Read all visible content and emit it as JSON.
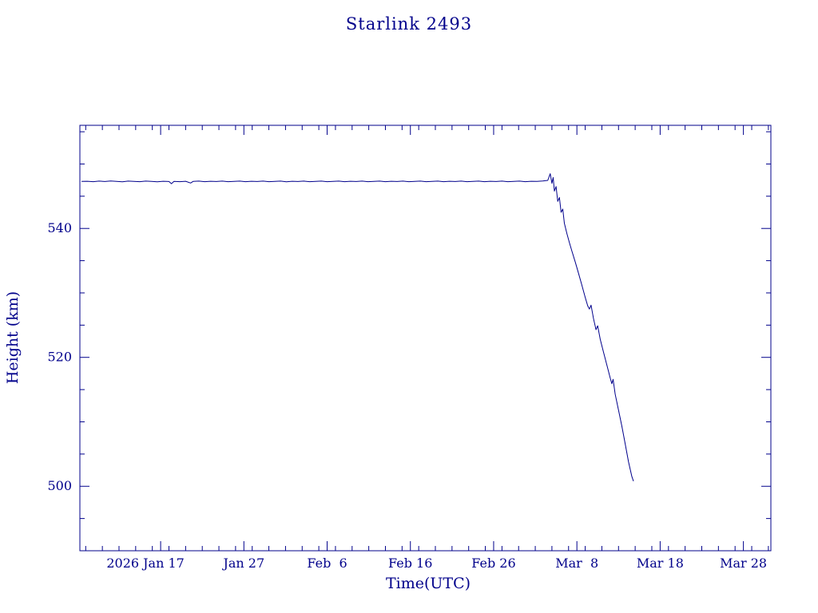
{
  "title": "Starlink 2493",
  "axes": {
    "xlabel": "Time(UTC)",
    "ylabel": "Height (km)"
  },
  "chart_data": {
    "type": "line",
    "title": "Starlink 2493",
    "xlabel": "Time(UTC)",
    "ylabel": "Height (km)",
    "line_color": "#00008b",
    "background": "#ffffff",
    "legend": "none",
    "grid": false,
    "x_units": "day of year 2026 (UTC)",
    "x_range_day_of_year": [
      7.3,
      90.3
    ],
    "ylim": [
      490,
      556
    ],
    "x_minor_step": 2,
    "y_minor_step": 5,
    "x_ticks": [
      {
        "day": 17,
        "label": "2026 Jan 17",
        "shift": -19
      },
      {
        "day": 27,
        "label": "Jan 27",
        "shift": 0
      },
      {
        "day": 37,
        "label": "Feb  6",
        "shift": 0
      },
      {
        "day": 47,
        "label": "Feb 16",
        "shift": 0
      },
      {
        "day": 57,
        "label": "Feb 26",
        "shift": 0
      },
      {
        "day": 67,
        "label": "Mar  8",
        "shift": 0
      },
      {
        "day": 77,
        "label": "Mar 18",
        "shift": 0
      },
      {
        "day": 87,
        "label": "Mar 28",
        "shift": 0
      }
    ],
    "y_ticks": [
      500,
      520,
      540
    ],
    "series": [
      {
        "name": "height_km",
        "points": [
          [
            7.5,
            547.3
          ],
          [
            8.2,
            547.32
          ],
          [
            8.9,
            547.26
          ],
          [
            9.6,
            547.34
          ],
          [
            10.3,
            547.28
          ],
          [
            11,
            547.36
          ],
          [
            11.7,
            547.3
          ],
          [
            12.4,
            547.24
          ],
          [
            13.1,
            547.34
          ],
          [
            13.8,
            547.3
          ],
          [
            14.5,
            547.26
          ],
          [
            15.2,
            547.34
          ],
          [
            15.9,
            547.3
          ],
          [
            16.6,
            547.24
          ],
          [
            17.3,
            547.32
          ],
          [
            18,
            547.28
          ],
          [
            18.3,
            546.95
          ],
          [
            18.6,
            547.3
          ],
          [
            19.3,
            547.26
          ],
          [
            20,
            547.32
          ],
          [
            20.6,
            547.05
          ],
          [
            20.9,
            547.3
          ],
          [
            21.6,
            547.34
          ],
          [
            22.3,
            547.26
          ],
          [
            23,
            547.32
          ],
          [
            23.7,
            547.28
          ],
          [
            24.4,
            547.34
          ],
          [
            25.1,
            547.26
          ],
          [
            25.8,
            547.3
          ],
          [
            26.5,
            547.34
          ],
          [
            27.2,
            547.26
          ],
          [
            27.9,
            547.32
          ],
          [
            28.6,
            547.28
          ],
          [
            29.3,
            547.34
          ],
          [
            30,
            547.26
          ],
          [
            30.7,
            547.3
          ],
          [
            31.4,
            547.34
          ],
          [
            32.1,
            547.24
          ],
          [
            32.8,
            547.32
          ],
          [
            33.5,
            547.28
          ],
          [
            34.2,
            547.34
          ],
          [
            34.9,
            547.26
          ],
          [
            35.6,
            547.3
          ],
          [
            36.3,
            547.34
          ],
          [
            37,
            547.26
          ],
          [
            37.7,
            547.3
          ],
          [
            38.4,
            547.34
          ],
          [
            39.1,
            547.26
          ],
          [
            39.8,
            547.32
          ],
          [
            40.5,
            547.28
          ],
          [
            41.2,
            547.34
          ],
          [
            41.9,
            547.26
          ],
          [
            42.6,
            547.3
          ],
          [
            43.3,
            547.34
          ],
          [
            44,
            547.26
          ],
          [
            44.7,
            547.32
          ],
          [
            45.4,
            547.28
          ],
          [
            46.1,
            547.34
          ],
          [
            46.8,
            547.26
          ],
          [
            47.5,
            547.3
          ],
          [
            48.2,
            547.34
          ],
          [
            48.9,
            547.26
          ],
          [
            49.6,
            547.3
          ],
          [
            50.3,
            547.34
          ],
          [
            51,
            547.26
          ],
          [
            51.7,
            547.32
          ],
          [
            52.4,
            547.28
          ],
          [
            53.1,
            547.34
          ],
          [
            53.8,
            547.26
          ],
          [
            54.5,
            547.3
          ],
          [
            55.2,
            547.34
          ],
          [
            55.9,
            547.26
          ],
          [
            56.6,
            547.32
          ],
          [
            57.3,
            547.28
          ],
          [
            58,
            547.34
          ],
          [
            58.7,
            547.26
          ],
          [
            59.4,
            547.3
          ],
          [
            60.1,
            547.34
          ],
          [
            60.8,
            547.26
          ],
          [
            61.5,
            547.32
          ],
          [
            62.2,
            547.3
          ],
          [
            62.9,
            547.36
          ],
          [
            63.5,
            547.45
          ],
          [
            63.8,
            548.5
          ],
          [
            64,
            547
          ],
          [
            64.15,
            547.9
          ],
          [
            64.3,
            545.8
          ],
          [
            64.5,
            546.5
          ],
          [
            64.7,
            544.2
          ],
          [
            64.9,
            544.8
          ],
          [
            65.1,
            542.5
          ],
          [
            65.3,
            543
          ],
          [
            65.5,
            540.8
          ],
          [
            65.8,
            539.2
          ],
          [
            66.1,
            537.8
          ],
          [
            66.4,
            536.5
          ],
          [
            66.8,
            534.8
          ],
          [
            67.2,
            533
          ],
          [
            67.6,
            531.2
          ],
          [
            68,
            529.3
          ],
          [
            68.3,
            528
          ],
          [
            68.5,
            527.5
          ],
          [
            68.7,
            528.1
          ],
          [
            69,
            526
          ],
          [
            69.3,
            524.3
          ],
          [
            69.5,
            524.9
          ],
          [
            69.8,
            522.8
          ],
          [
            70.2,
            520.8
          ],
          [
            70.6,
            518.8
          ],
          [
            71,
            516.8
          ],
          [
            71.2,
            515.9
          ],
          [
            71.35,
            516.6
          ],
          [
            71.6,
            514.3
          ],
          [
            72,
            511.8
          ],
          [
            72.4,
            509.3
          ],
          [
            72.8,
            506.6
          ],
          [
            73.2,
            503.8
          ],
          [
            73.6,
            501.5
          ],
          [
            73.8,
            500.8
          ]
        ]
      }
    ]
  }
}
